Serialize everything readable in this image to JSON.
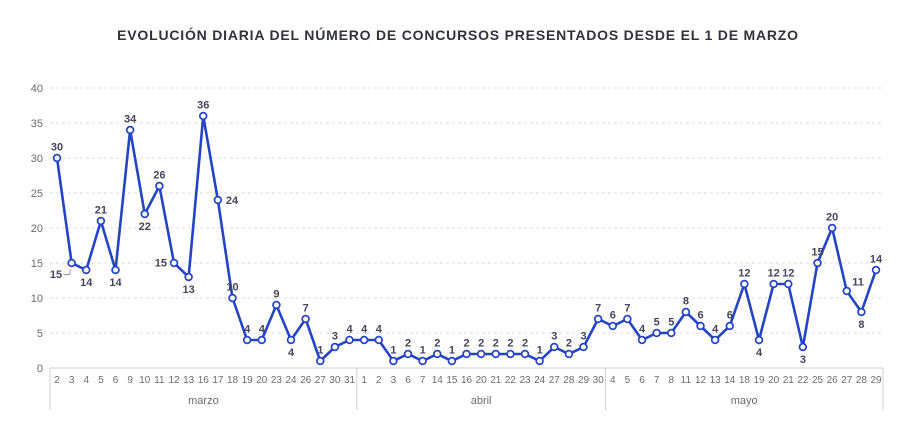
{
  "title": "EVOLUCIÓN DIARIA DEL NÚMERO DE CONCURSOS PRESENTADOS DESDE EL 1 DE MARZO",
  "colors": {
    "line": "#2444c5",
    "marker_fill": "#ffffff",
    "grid": "#dedede",
    "axis_text": "#6b6b6b",
    "band_border": "#d0d0d0",
    "data_label": "#45455c",
    "leader": "#9a9a9a",
    "title_text": "#32323c"
  },
  "chart_data": {
    "type": "line",
    "title": "EVOLUCIÓN DIARIA DEL NÚMERO DE CONCURSOS PRESENTADOS DESDE EL 1 DE MARZO",
    "xlabel": "",
    "ylabel": "",
    "ylim": [
      0,
      40
    ],
    "yticks": [
      0,
      5,
      10,
      15,
      20,
      25,
      30,
      35,
      40
    ],
    "grid": true,
    "legend": false,
    "marker": "open-circle",
    "months": [
      {
        "name": "marzo",
        "days": [
          "2",
          "3",
          "4",
          "5",
          "6",
          "9",
          "10",
          "11",
          "12",
          "13",
          "16",
          "17",
          "18",
          "19",
          "20",
          "23",
          "24",
          "26",
          "27",
          "30",
          "31"
        ],
        "values": [
          30,
          15,
          14,
          21,
          14,
          34,
          22,
          26,
          15,
          13,
          36,
          24,
          10,
          4,
          4,
          9,
          4,
          7,
          1,
          3,
          4
        ],
        "label_pos": [
          "above",
          "left-leader",
          "below",
          "above",
          "below",
          "above",
          "below",
          "above",
          "left",
          "below",
          "above",
          "right",
          "above",
          "above",
          "above",
          "above",
          "below",
          "above",
          "above",
          "above",
          "above"
        ]
      },
      {
        "name": "abril",
        "days": [
          "1",
          "2",
          "3",
          "6",
          "7",
          "14",
          "15",
          "16",
          "20",
          "21",
          "22",
          "23",
          "24",
          "27",
          "28",
          "29",
          "30"
        ],
        "values": [
          4,
          4,
          1,
          2,
          1,
          2,
          1,
          2,
          2,
          2,
          2,
          2,
          1,
          3,
          2,
          3,
          7
        ],
        "label_pos": [
          "above",
          "above",
          "above",
          "above",
          "above",
          "above",
          "above",
          "above",
          "above",
          "above",
          "above",
          "above",
          "above",
          "above",
          "above",
          "above",
          "above"
        ]
      },
      {
        "name": "mayo",
        "days": [
          "4",
          "5",
          "6",
          "7",
          "8",
          "11",
          "12",
          "13",
          "14",
          "18",
          "19",
          "20",
          "21",
          "22",
          "25",
          "26",
          "27",
          "28",
          "29"
        ],
        "values": [
          6,
          7,
          4,
          5,
          5,
          8,
          6,
          4,
          6,
          12,
          4,
          12,
          12,
          3,
          15,
          20,
          11,
          8,
          14
        ],
        "label_pos": [
          "above",
          "above",
          "above",
          "above",
          "above",
          "above",
          "above",
          "above",
          "above",
          "above",
          "below",
          "above",
          "above",
          "below",
          "above",
          "above",
          "right-above",
          "below",
          "above"
        ]
      }
    ]
  }
}
